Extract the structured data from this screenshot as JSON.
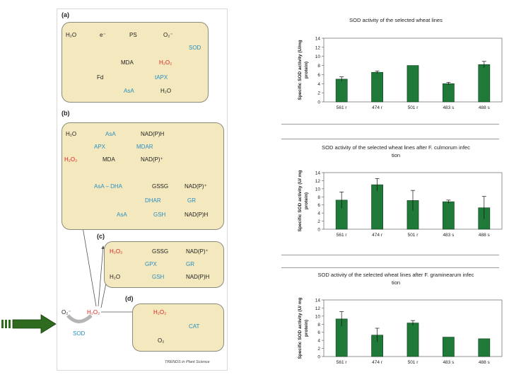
{
  "diagram": {
    "panel_a": {
      "label": "(a)",
      "h2o_left": "H₂O",
      "e_minus": "e⁻",
      "ps": "PS",
      "o2_minus": "O₂⁻",
      "sod": "SOD",
      "mda": "MDA",
      "h2o2": "H₂O₂",
      "fd": "Fd",
      "tapx": "tAPX",
      "asa": "AsA",
      "h2o_right": "H₂O"
    },
    "panel_b": {
      "label": "(b)",
      "h2o": "H₂O",
      "asa_top": "AsA",
      "nadph_top": "NAD(P)H",
      "apx": "APX",
      "mdar": "MDAR",
      "h2o2": "H₂O₂",
      "mda": "MDA",
      "nadp_plus": "NAD(P)⁺",
      "asa_dha": "AsA – DHA",
      "gssg": "GSSG",
      "nadp_right": "NAD(P)⁺",
      "dhar": "DHAR",
      "gr": "GR",
      "asa_bottom": "AsA",
      "gsh": "GSH",
      "nadph_bottom": "NAD(P)H"
    },
    "panel_c": {
      "label": "(c)",
      "h2o2": "H₂O₂",
      "gssg": "GSSG",
      "nadp_plus": "NAD(P)⁺",
      "gpx": "GPX",
      "gr": "GR",
      "h2o": "H₂O",
      "gsh": "GSH",
      "nadph": "NAD(P)H"
    },
    "panel_d": {
      "label": "(d)",
      "h2o2": "H₂O₂",
      "cat": "CAT",
      "o2": "O₂"
    },
    "source_o2_minus": "O₂⁻",
    "source_h2o2": "H₂O₂",
    "source_sod": "SOD",
    "credit": "TRENDS in Plant Science"
  },
  "colors": {
    "bar": "#1f7a3a",
    "arrow": "#2f6b1e",
    "box": "#f4e8bf",
    "red": "#d62020",
    "blue": "#2a8fc0"
  },
  "chart_data": [
    {
      "type": "bar",
      "title": "SOD activity of the selected wheat lines",
      "ylabel": "Specific SOD activity (U/mg protein)",
      "categories": [
        "561 r",
        "474 r",
        "501 r",
        "483 s",
        "488 s"
      ],
      "values": [
        5.0,
        6.5,
        8.0,
        4.0,
        8.2
      ],
      "errors": [
        0.5,
        0.3,
        0,
        0.3,
        0.7
      ],
      "ylim": [
        0,
        14
      ],
      "yticks": [
        0,
        2,
        4,
        6,
        8,
        10,
        12,
        14
      ]
    },
    {
      "type": "bar",
      "title": "SOD activity of the selected wheat lines after F. culmorum infection",
      "ylabel": "Specific SOD activity (U/ mg protein)",
      "categories": [
        "561 r",
        "474 r",
        "501 r",
        "483 s",
        "488 s"
      ],
      "values": [
        7.2,
        11.0,
        7.1,
        6.8,
        5.3
      ],
      "errors": [
        2.0,
        1.5,
        2.5,
        0.4,
        2.8
      ],
      "ylim": [
        0,
        14
      ],
      "yticks": [
        0,
        2,
        4,
        6,
        8,
        10,
        12,
        14
      ]
    },
    {
      "type": "bar",
      "title": "SOD activity of the selected wheat lines after F. graminearum infection",
      "ylabel": "Specific SOD activity (U/ mg protein)",
      "categories": [
        "561 r",
        "474 r",
        "501 r",
        "483 s",
        "488 s"
      ],
      "values": [
        9.3,
        5.3,
        8.3,
        4.8,
        4.4
      ],
      "errors": [
        1.8,
        1.7,
        0.6,
        0,
        0
      ],
      "ylim": [
        0,
        14
      ],
      "yticks": [
        0,
        2,
        4,
        6,
        8,
        10,
        12,
        14
      ]
    }
  ]
}
